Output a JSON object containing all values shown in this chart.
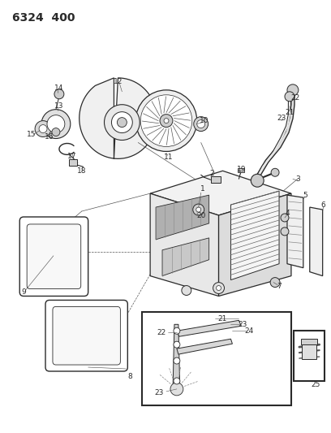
{
  "title": "6324  400",
  "bg_color": "#f5f5f0",
  "line_color": "#2a2a2a",
  "figsize": [
    4.08,
    5.33
  ],
  "dpi": 100
}
